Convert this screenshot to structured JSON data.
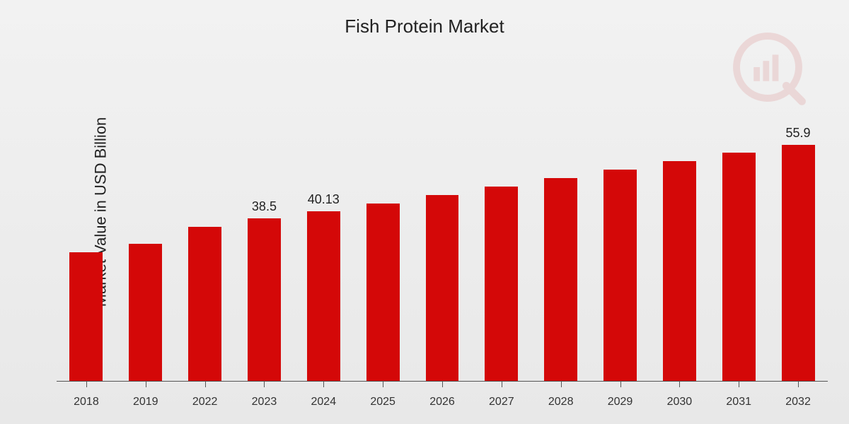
{
  "chart": {
    "type": "bar",
    "title": "Fish Protein Market",
    "y_axis_label": "Market Value in USD Billion",
    "title_fontsize": 26,
    "ylabel_fontsize": 22,
    "xlabel_fontsize": 16,
    "value_label_fontsize": 18,
    "bar_color": "#d40808",
    "background_gradient_top": "#f2f2f2",
    "background_gradient_bottom": "#e8e8e8",
    "baseline_color": "#555555",
    "text_color": "#222222",
    "ylim": [
      0,
      70
    ],
    "bar_width_ratio": 0.56,
    "categories": [
      "2018",
      "2019",
      "2022",
      "2023",
      "2024",
      "2025",
      "2026",
      "2027",
      "2028",
      "2029",
      "2030",
      "2031",
      "2032"
    ],
    "values": [
      30.5,
      32.5,
      36.5,
      38.5,
      40.13,
      42.0,
      44.0,
      46.0,
      48.0,
      50.0,
      52.0,
      54.0,
      55.9
    ],
    "value_labels": [
      "",
      "",
      "",
      "38.5",
      "40.13",
      "",
      "",
      "",
      "",
      "",
      "",
      "",
      "55.9"
    ],
    "watermark_color": "#c62828"
  }
}
